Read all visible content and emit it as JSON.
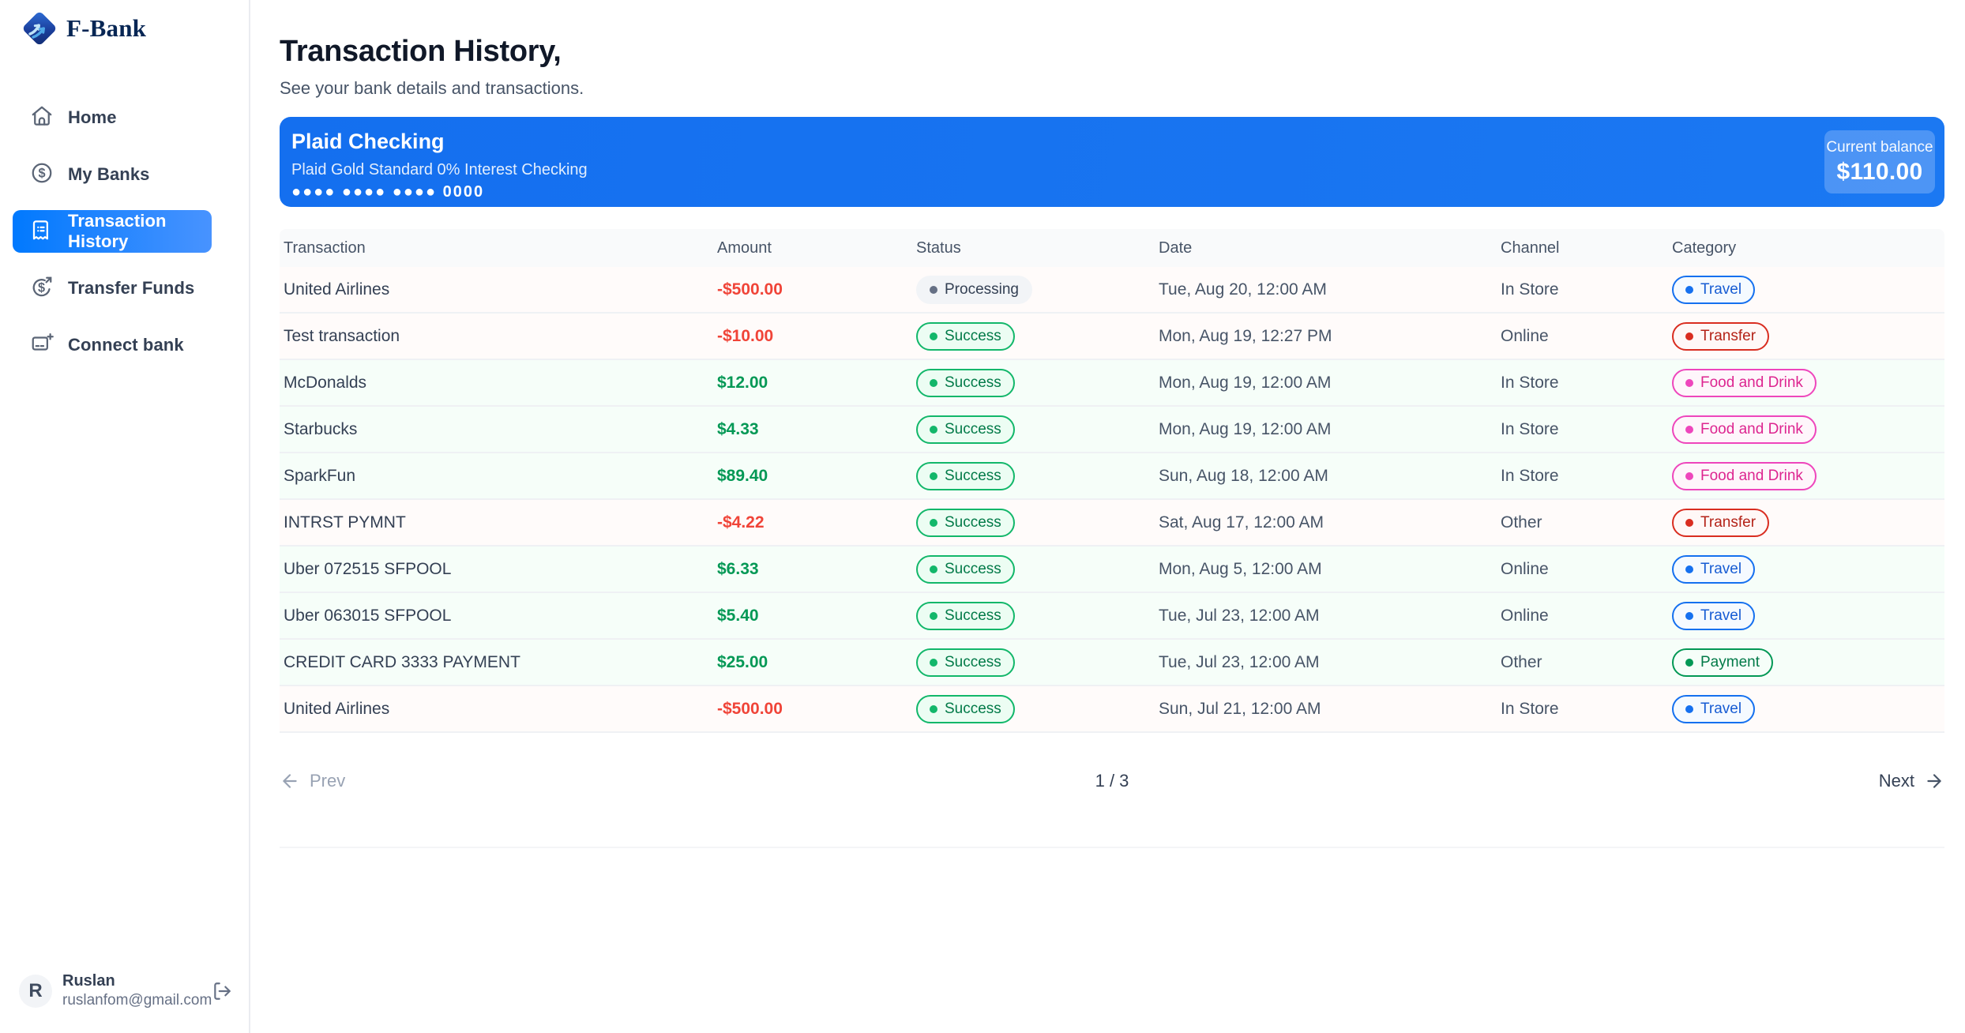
{
  "brand": {
    "name": "F-Bank"
  },
  "sidebar": {
    "items": [
      {
        "label": "Home",
        "icon": "home-icon",
        "active": false
      },
      {
        "label": "My Banks",
        "icon": "dollar-circle-icon",
        "active": false
      },
      {
        "label": "Transaction History",
        "icon": "receipt-icon",
        "active": true
      },
      {
        "label": "Transfer Funds",
        "icon": "transfer-dollar-icon",
        "active": false
      },
      {
        "label": "Connect bank",
        "icon": "connect-bank-icon",
        "active": false
      }
    ],
    "user": {
      "initial": "R",
      "name": "Ruslan",
      "email": "ruslanfom@gmail.com"
    }
  },
  "header": {
    "title": "Transaction History,",
    "subtitle": "See your bank details and transactions."
  },
  "account_card": {
    "name": "Plaid Checking",
    "subtitle": "Plaid Gold Standard 0% Interest Checking",
    "masked_number": "●●●● ●●●● ●●●● 0000",
    "balance_label": "Current balance",
    "balance": "$110.00",
    "bg_color": "#1774F0"
  },
  "table": {
    "columns": [
      "Transaction",
      "Amount",
      "Status",
      "Date",
      "Channel",
      "Category"
    ],
    "rows": [
      {
        "name": "United Airlines",
        "amount": "-$500.00",
        "negative": true,
        "status": "Processing",
        "date": "Tue, Aug 20, 12:00 AM",
        "channel": "In Store",
        "category": "Travel"
      },
      {
        "name": "Test transaction",
        "amount": "-$10.00",
        "negative": true,
        "status": "Success",
        "date": "Mon, Aug 19, 12:27 PM",
        "channel": "Online",
        "category": "Transfer"
      },
      {
        "name": "McDonalds",
        "amount": "$12.00",
        "negative": false,
        "status": "Success",
        "date": "Mon, Aug 19, 12:00 AM",
        "channel": "In Store",
        "category": "Food and Drink"
      },
      {
        "name": "Starbucks",
        "amount": "$4.33",
        "negative": false,
        "status": "Success",
        "date": "Mon, Aug 19, 12:00 AM",
        "channel": "In Store",
        "category": "Food and Drink"
      },
      {
        "name": "SparkFun",
        "amount": "$89.40",
        "negative": false,
        "status": "Success",
        "date": "Sun, Aug 18, 12:00 AM",
        "channel": "In Store",
        "category": "Food and Drink"
      },
      {
        "name": "INTRST PYMNT",
        "amount": "-$4.22",
        "negative": true,
        "status": "Success",
        "date": "Sat, Aug 17, 12:00 AM",
        "channel": "Other",
        "category": "Transfer"
      },
      {
        "name": "Uber 072515 SFPOOL",
        "amount": "$6.33",
        "negative": false,
        "status": "Success",
        "date": "Mon, Aug 5, 12:00 AM",
        "channel": "Online",
        "category": "Travel"
      },
      {
        "name": "Uber 063015 SFPOOL",
        "amount": "$5.40",
        "negative": false,
        "status": "Success",
        "date": "Tue, Jul 23, 12:00 AM",
        "channel": "Online",
        "category": "Travel"
      },
      {
        "name": "CREDIT CARD 3333 PAYMENT",
        "amount": "$25.00",
        "negative": false,
        "status": "Success",
        "date": "Tue, Jul 23, 12:00 AM",
        "channel": "Other",
        "category": "Payment"
      },
      {
        "name": "United Airlines",
        "amount": "-$500.00",
        "negative": true,
        "status": "Success",
        "date": "Sun, Jul 21, 12:00 AM",
        "channel": "In Store",
        "category": "Travel"
      }
    ],
    "row_colors": {
      "negative": "#FFFBFA",
      "positive": "#F6FEF9"
    },
    "amount_colors": {
      "negative": "#F04438",
      "positive": "#039855"
    }
  },
  "badge_styles": {
    "Processing": {
      "bg": "#F2F4F7",
      "border": "#F2F4F7",
      "text": "#344054",
      "dot": "#667085"
    },
    "Success": {
      "bg": "#ECFDF3",
      "border": "#12B76A",
      "text": "#027A48",
      "dot": "#12B76A"
    },
    "Travel": {
      "bg": "#F5FAFF",
      "border": "#1570EF",
      "text": "#175CD3",
      "dot": "#1570EF"
    },
    "Transfer": {
      "bg": "#FFF8F7",
      "border": "#D92D20",
      "text": "#B42318",
      "dot": "#D92D20"
    },
    "Food and Drink": {
      "bg": "#FEF6FB",
      "border": "#EE46BC",
      "text": "#DD2590",
      "dot": "#EE46BC"
    },
    "Payment": {
      "bg": "#F6FEF9",
      "border": "#039855",
      "text": "#027A48",
      "dot": "#039855"
    }
  },
  "pagination": {
    "prev_label": "Prev",
    "page_info": "1 / 3",
    "next_label": "Next"
  }
}
